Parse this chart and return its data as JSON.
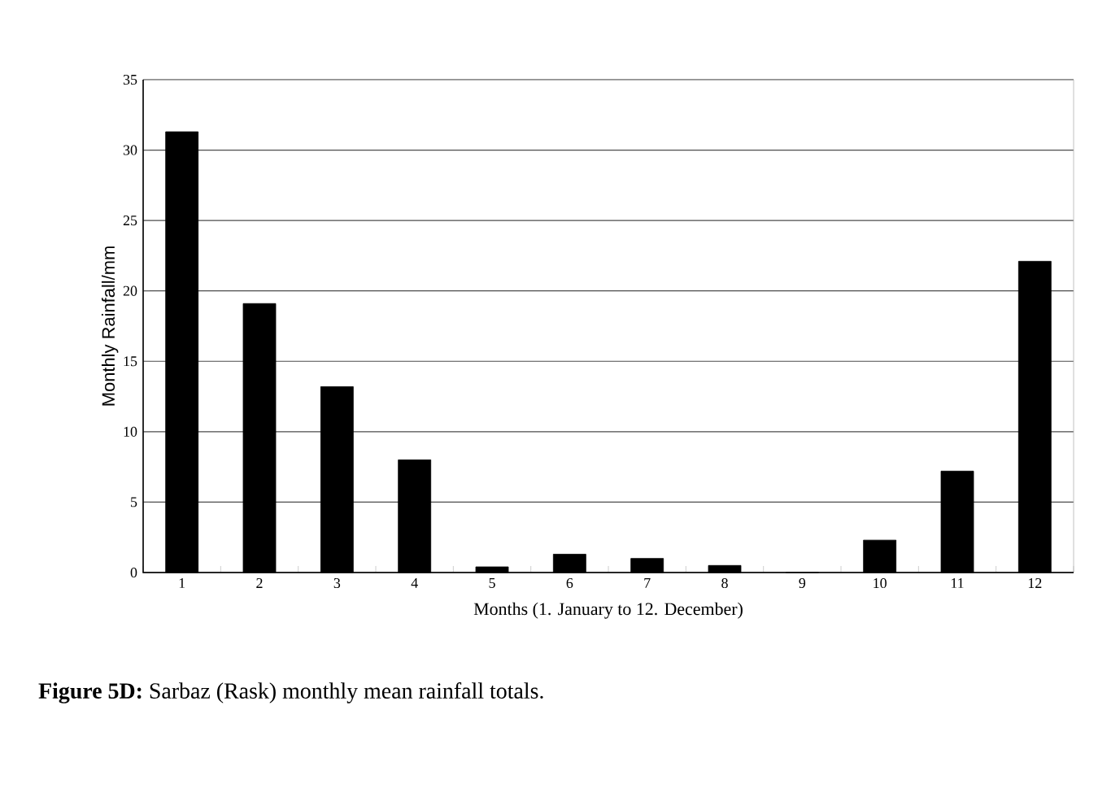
{
  "chart_data": {
    "type": "bar",
    "xlabel": "Months (1. January to 12. December)",
    "ylabel": "Monthly Rainfall/mm",
    "categories": [
      "1",
      "2",
      "3",
      "4",
      "5",
      "6",
      "7",
      "8",
      "9",
      "10",
      "11",
      "12"
    ],
    "values": [
      31.3,
      19.1,
      13.2,
      8.0,
      0.4,
      1.3,
      1.0,
      0.5,
      0,
      2.3,
      7.2,
      22.1
    ],
    "color": "#000000",
    "ylim": [
      0,
      35
    ],
    "yticks": [
      0,
      5,
      10,
      15,
      20,
      25,
      30,
      35
    ],
    "grid": "y",
    "annotations": [
      "**Figure 5D:** Sarbaz (Rask) monthly mean rainfall totals."
    ]
  }
}
